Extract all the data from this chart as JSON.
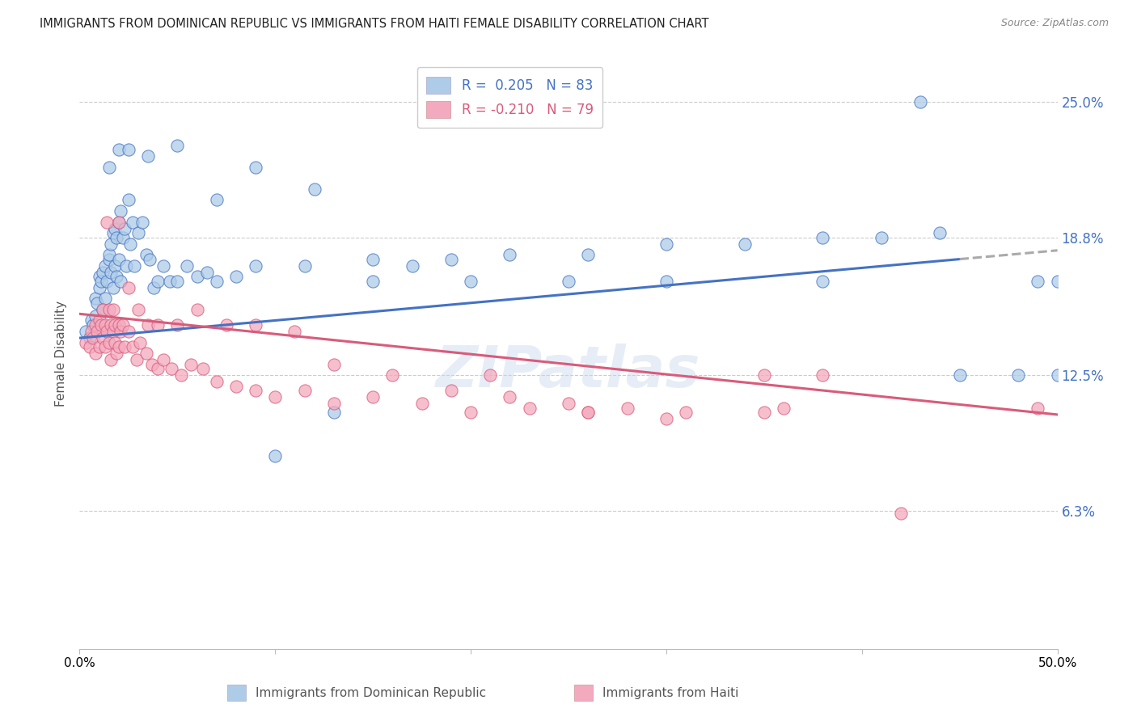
{
  "title": "IMMIGRANTS FROM DOMINICAN REPUBLIC VS IMMIGRANTS FROM HAITI FEMALE DISABILITY CORRELATION CHART",
  "source": "Source: ZipAtlas.com",
  "ylabel": "Female Disability",
  "ytick_labels": [
    "25.0%",
    "18.8%",
    "12.5%",
    "6.3%"
  ],
  "ytick_values": [
    0.25,
    0.188,
    0.125,
    0.063
  ],
  "xlim": [
    0.0,
    0.5
  ],
  "ylim": [
    0.0,
    0.27
  ],
  "color_blue": "#AECCE8",
  "color_pink": "#F4AABE",
  "line_blue": "#4472C4",
  "line_pink": "#D95B7A",
  "line_dash": "#AAAAAA",
  "watermark": "ZIPatlas",
  "dr_x": [
    0.003,
    0.005,
    0.006,
    0.007,
    0.008,
    0.008,
    0.009,
    0.01,
    0.01,
    0.011,
    0.012,
    0.012,
    0.013,
    0.013,
    0.014,
    0.015,
    0.015,
    0.016,
    0.016,
    0.017,
    0.017,
    0.018,
    0.018,
    0.019,
    0.019,
    0.02,
    0.02,
    0.021,
    0.021,
    0.022,
    0.023,
    0.024,
    0.025,
    0.026,
    0.027,
    0.028,
    0.03,
    0.032,
    0.034,
    0.036,
    0.038,
    0.04,
    0.043,
    0.046,
    0.05,
    0.055,
    0.06,
    0.065,
    0.07,
    0.08,
    0.09,
    0.1,
    0.115,
    0.13,
    0.15,
    0.17,
    0.19,
    0.22,
    0.26,
    0.3,
    0.34,
    0.38,
    0.41,
    0.44,
    0.015,
    0.02,
    0.025,
    0.035,
    0.05,
    0.07,
    0.09,
    0.12,
    0.15,
    0.2,
    0.25,
    0.3,
    0.38,
    0.43,
    0.45,
    0.48,
    0.5,
    0.5,
    0.49
  ],
  "dr_y": [
    0.145,
    0.142,
    0.15,
    0.148,
    0.152,
    0.16,
    0.158,
    0.165,
    0.17,
    0.168,
    0.172,
    0.155,
    0.175,
    0.16,
    0.168,
    0.178,
    0.18,
    0.185,
    0.172,
    0.19,
    0.165,
    0.192,
    0.175,
    0.188,
    0.17,
    0.195,
    0.178,
    0.2,
    0.168,
    0.188,
    0.192,
    0.175,
    0.205,
    0.185,
    0.195,
    0.175,
    0.19,
    0.195,
    0.18,
    0.178,
    0.165,
    0.168,
    0.175,
    0.168,
    0.168,
    0.175,
    0.17,
    0.172,
    0.168,
    0.17,
    0.175,
    0.088,
    0.175,
    0.108,
    0.178,
    0.175,
    0.178,
    0.18,
    0.18,
    0.185,
    0.185,
    0.188,
    0.188,
    0.19,
    0.22,
    0.228,
    0.228,
    0.225,
    0.23,
    0.205,
    0.22,
    0.21,
    0.168,
    0.168,
    0.168,
    0.168,
    0.168,
    0.25,
    0.125,
    0.125,
    0.125,
    0.168,
    0.168
  ],
  "haiti_x": [
    0.003,
    0.005,
    0.006,
    0.007,
    0.008,
    0.008,
    0.009,
    0.01,
    0.01,
    0.011,
    0.012,
    0.012,
    0.013,
    0.013,
    0.014,
    0.015,
    0.015,
    0.016,
    0.016,
    0.017,
    0.017,
    0.018,
    0.018,
    0.019,
    0.02,
    0.02,
    0.021,
    0.022,
    0.023,
    0.025,
    0.027,
    0.029,
    0.031,
    0.034,
    0.037,
    0.04,
    0.043,
    0.047,
    0.052,
    0.057,
    0.063,
    0.07,
    0.08,
    0.09,
    0.1,
    0.115,
    0.13,
    0.15,
    0.175,
    0.2,
    0.23,
    0.26,
    0.3,
    0.014,
    0.02,
    0.025,
    0.03,
    0.035,
    0.04,
    0.05,
    0.06,
    0.075,
    0.09,
    0.11,
    0.13,
    0.16,
    0.19,
    0.22,
    0.25,
    0.28,
    0.31,
    0.36,
    0.35,
    0.21,
    0.26,
    0.38,
    0.42,
    0.49,
    0.35
  ],
  "haiti_y": [
    0.14,
    0.138,
    0.145,
    0.142,
    0.148,
    0.135,
    0.145,
    0.15,
    0.138,
    0.148,
    0.142,
    0.155,
    0.148,
    0.138,
    0.145,
    0.155,
    0.14,
    0.148,
    0.132,
    0.145,
    0.155,
    0.14,
    0.148,
    0.135,
    0.148,
    0.138,
    0.145,
    0.148,
    0.138,
    0.145,
    0.138,
    0.132,
    0.14,
    0.135,
    0.13,
    0.128,
    0.132,
    0.128,
    0.125,
    0.13,
    0.128,
    0.122,
    0.12,
    0.118,
    0.115,
    0.118,
    0.112,
    0.115,
    0.112,
    0.108,
    0.11,
    0.108,
    0.105,
    0.195,
    0.195,
    0.165,
    0.155,
    0.148,
    0.148,
    0.148,
    0.155,
    0.148,
    0.148,
    0.145,
    0.13,
    0.125,
    0.118,
    0.115,
    0.112,
    0.11,
    0.108,
    0.11,
    0.125,
    0.125,
    0.108,
    0.125,
    0.062,
    0.11,
    0.108
  ]
}
